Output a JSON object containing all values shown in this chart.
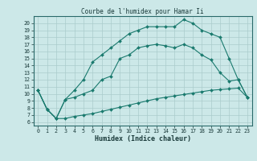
{
  "title": "Courbe de l'humidex pour Hamar Ii",
  "xlabel": "Humidex (Indice chaleur)",
  "bg_color": "#cce8e8",
  "line_color": "#1a7a6e",
  "grid_color": "#aacccc",
  "xlim": [
    -0.5,
    23.5
  ],
  "ylim": [
    5.5,
    21.0
  ],
  "yticks": [
    6,
    7,
    8,
    9,
    10,
    11,
    12,
    13,
    14,
    15,
    16,
    17,
    18,
    19,
    20
  ],
  "xticks": [
    0,
    1,
    2,
    3,
    4,
    5,
    6,
    7,
    8,
    9,
    10,
    11,
    12,
    13,
    14,
    15,
    16,
    17,
    18,
    19,
    20,
    21,
    22,
    23
  ],
  "curve1_x": [
    0,
    1,
    2,
    3,
    4,
    5,
    6,
    7,
    8,
    9,
    10,
    11,
    12,
    13,
    14,
    15,
    16,
    17,
    18,
    19,
    20,
    21,
    22,
    23
  ],
  "curve1_y": [
    10.5,
    7.8,
    6.5,
    6.5,
    6.8,
    7.0,
    7.2,
    7.5,
    7.8,
    8.1,
    8.4,
    8.7,
    9.0,
    9.3,
    9.5,
    9.7,
    9.9,
    10.1,
    10.3,
    10.5,
    10.6,
    10.7,
    10.8,
    9.5
  ],
  "curve2_x": [
    0,
    1,
    2,
    3,
    4,
    5,
    6,
    7,
    8,
    9,
    10,
    11,
    12,
    13,
    14,
    15,
    16,
    17,
    18,
    19,
    20,
    21,
    22,
    23
  ],
  "curve2_y": [
    10.5,
    7.8,
    6.5,
    9.2,
    9.5,
    10.0,
    10.5,
    12.0,
    12.5,
    15.0,
    15.5,
    16.5,
    16.8,
    17.0,
    16.8,
    16.5,
    17.0,
    16.5,
    15.5,
    14.8,
    13.0,
    11.8,
    12.0,
    9.5
  ],
  "curve3_x": [
    0,
    1,
    2,
    3,
    4,
    5,
    6,
    7,
    8,
    9,
    10,
    11,
    12,
    13,
    14,
    15,
    16,
    17,
    18,
    19,
    20,
    21,
    22,
    23
  ],
  "curve3_y": [
    10.5,
    7.8,
    6.5,
    9.2,
    10.5,
    12.0,
    14.5,
    15.5,
    16.5,
    17.5,
    18.5,
    19.0,
    19.5,
    19.5,
    19.5,
    19.5,
    20.5,
    20.0,
    19.0,
    18.5,
    18.0,
    15.0,
    12.0,
    9.5
  ],
  "title_fontsize": 5.5,
  "xlabel_fontsize": 6.0,
  "tick_fontsize": 4.8
}
